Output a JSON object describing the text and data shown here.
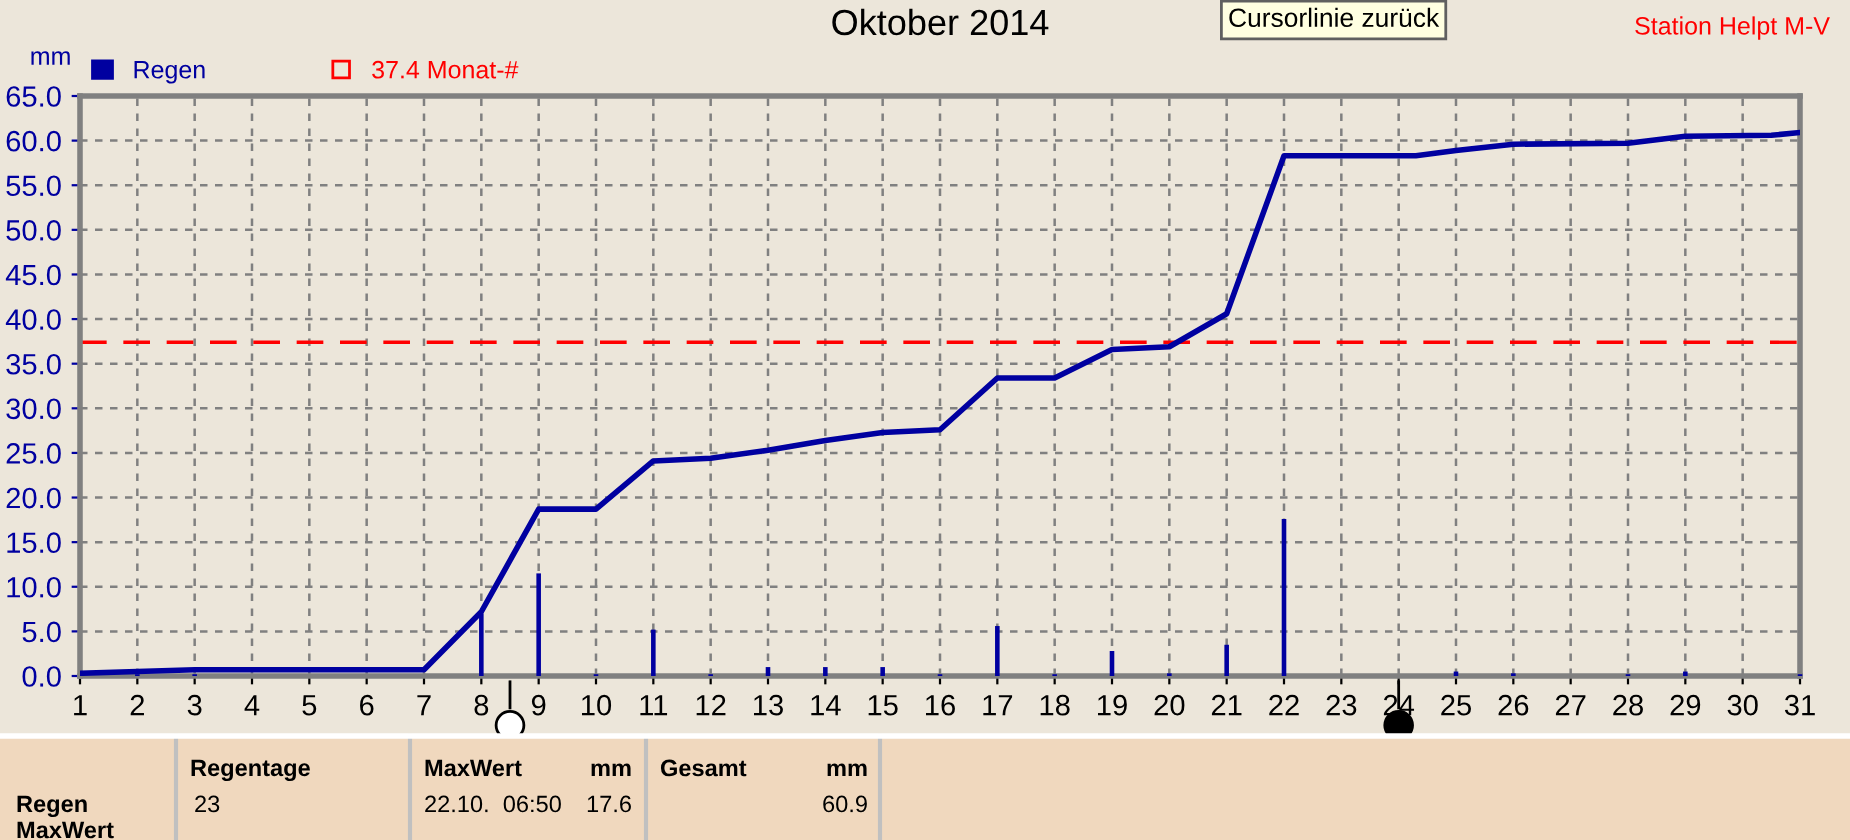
{
  "chart_data": {
    "type": "bar",
    "title": "Oktober 2014",
    "ylabel": "mm",
    "x": [
      1,
      2,
      3,
      4,
      5,
      6,
      7,
      8,
      9,
      10,
      11,
      12,
      13,
      14,
      15,
      16,
      17,
      18,
      19,
      20,
      21,
      22,
      23,
      24,
      25,
      26,
      27,
      28,
      29,
      30,
      31
    ],
    "series": [
      {
        "name": "Regen",
        "color": "#0000a0",
        "values": [
          0,
          0.2,
          0.2,
          0,
          0,
          0,
          0,
          7.0,
          11.5,
          0.2,
          5.2,
          0.2,
          1.0,
          1.0,
          1.0,
          0.2,
          5.6,
          0.2,
          2.8,
          0.3,
          3.5,
          17.6,
          0,
          0,
          0.5,
          0.3,
          0,
          0.2,
          0.5,
          0,
          0.2
        ]
      },
      {
        "type": "line",
        "color": "#0000a0",
        "x": [
          1,
          2,
          3,
          7,
          8,
          9,
          10,
          11,
          12,
          13,
          14,
          15,
          16,
          17,
          18,
          19,
          20,
          21,
          22,
          24.3,
          25,
          26,
          28,
          29,
          30.5,
          31
        ],
        "values": [
          0.3,
          0.5,
          0.7,
          0.7,
          7.2,
          18.7,
          18.7,
          24.1,
          24.4,
          25.3,
          26.4,
          27.3,
          27.6,
          33.4,
          33.4,
          36.6,
          36.9,
          40.6,
          58.3,
          58.3,
          58.9,
          59.6,
          59.7,
          60.5,
          60.6,
          60.9
        ]
      }
    ],
    "ref_lines": [
      {
        "axis": "y",
        "value": 37.4,
        "label": "37.4 Monat-#",
        "color": "#ff0000",
        "line_style": "dashed"
      }
    ],
    "xlim": [
      1,
      31
    ],
    "xticks": [
      1,
      2,
      3,
      4,
      5,
      6,
      7,
      8,
      9,
      10,
      11,
      12,
      13,
      14,
      15,
      16,
      17,
      18,
      19,
      20,
      21,
      22,
      23,
      24,
      25,
      26,
      27,
      28,
      29,
      30,
      31
    ],
    "ylim": [
      0,
      65
    ],
    "yticks": [
      {
        "value": 0,
        "label": "0.0"
      },
      {
        "value": 5,
        "label": "5.0"
      },
      {
        "value": 10,
        "label": "10.0"
      },
      {
        "value": 15,
        "label": "15.0"
      },
      {
        "value": 20,
        "label": "20.0"
      },
      {
        "value": 25,
        "label": "25.0"
      },
      {
        "value": 30,
        "label": "30.0"
      },
      {
        "value": 35,
        "label": "35.0"
      },
      {
        "value": 40,
        "label": "40.0"
      },
      {
        "value": 45,
        "label": "45.0"
      },
      {
        "value": 50,
        "label": "50.0"
      },
      {
        "value": 55,
        "label": "55.0"
      },
      {
        "value": 60,
        "label": "60.0"
      },
      {
        "value": 65,
        "label": "65.0"
      }
    ],
    "grid": true,
    "legend": "top left",
    "line_style": "solid",
    "marker": "none",
    "annotations": [
      "Cursorlinie zurück",
      "Station Helpt M-V",
      "Regen",
      "MaxWert",
      "Regentage",
      "23",
      "MaxWert",
      "mm",
      "22.10.  06:50",
      "17.6",
      "Gesamt",
      "mm",
      "60.9"
    ]
  }
}
